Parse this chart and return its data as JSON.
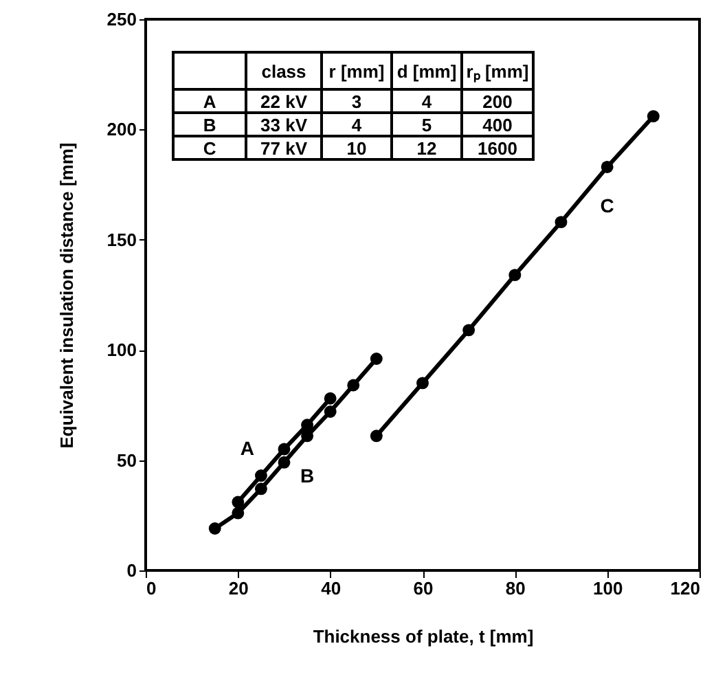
{
  "chart_data": {
    "type": "line",
    "xlabel": "Thickness of plate,  t [mm]",
    "ylabel": "Equivalent insulation distance [mm]",
    "xlim": [
      0,
      120
    ],
    "xticks": [
      0,
      20,
      40,
      60,
      80,
      100,
      120
    ],
    "ylim": [
      0,
      250
    ],
    "yticks": [
      0,
      50,
      100,
      150,
      200,
      250
    ],
    "grid": false,
    "marker": "circle",
    "line_style": "solid",
    "series": [
      {
        "name": "A",
        "color": "#000000",
        "x": [
          20,
          25,
          30,
          35,
          40
        ],
        "values": [
          31,
          43,
          55,
          66,
          78
        ]
      },
      {
        "name": "B",
        "color": "#000000",
        "x": [
          15,
          20,
          25,
          30,
          35,
          40,
          45,
          50
        ],
        "values": [
          19,
          26,
          37,
          49,
          61,
          72,
          84,
          96
        ]
      },
      {
        "name": "C",
        "color": "#000000",
        "x": [
          50,
          60,
          70,
          80,
          90,
          100,
          110
        ],
        "values": [
          61,
          85,
          109,
          134,
          158,
          183,
          206
        ]
      }
    ],
    "annotations": [
      "class",
      "r [mm]",
      "d [mm]",
      "rₚ [mm]",
      "A",
      "22 kV",
      "3",
      "4",
      "200",
      "B",
      "33 kV",
      "4",
      "5",
      "400",
      "C",
      "77 kV",
      "10",
      "12",
      "1600"
    ]
  }
}
